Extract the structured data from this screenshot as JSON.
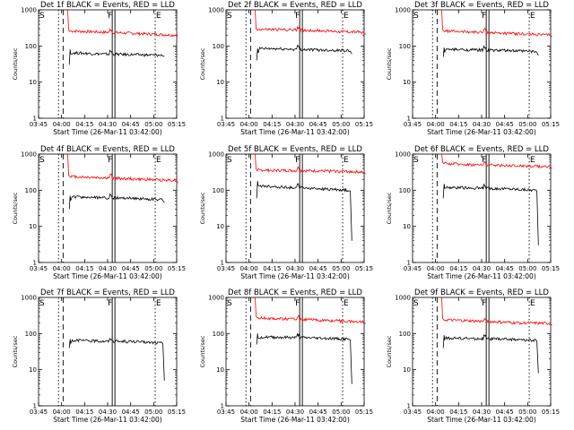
{
  "chart_data": [
    {
      "type": "line",
      "title": "Det 1f BLACK = Events, RED = LLD",
      "xlabel": "Start Time (26-Mar-11 03:42:00)",
      "ylabel": "Counts/sec",
      "yscale": "log",
      "ylim": [
        1,
        1000
      ],
      "xticks": [
        "03:45",
        "04:00",
        "04:15",
        "04:30",
        "04:45",
        "05:00",
        "05:15"
      ],
      "yticks": [
        "1",
        "10",
        "100",
        "1000"
      ],
      "markers": [
        "S",
        "F",
        "E"
      ],
      "series": [
        {
          "name": "LLD",
          "color": "#ff0000",
          "start": [
            1000,
            280
          ],
          "level": [
            260,
            240,
            220,
            200
          ],
          "tail": 190,
          "end": "05:16"
        },
        {
          "name": "Events",
          "color": "#000000",
          "start": [
            30,
            80
          ],
          "level": [
            65,
            60,
            58,
            55
          ],
          "tail": 52,
          "end": "05:07"
        }
      ]
    },
    {
      "type": "line",
      "title": "Det 2f BLACK = Events, RED = LLD",
      "xlabel": "Start Time (26-Mar-11 03:42:00)",
      "ylabel": "Counts/sec",
      "yscale": "log",
      "ylim": [
        1,
        1000
      ],
      "xticks": [
        "03:45",
        "04:00",
        "04:15",
        "04:30",
        "04:45",
        "05:00",
        "05:15"
      ],
      "yticks": [
        "1",
        "10",
        "100",
        "1000"
      ],
      "markers": [
        "S",
        "F",
        "E"
      ],
      "series": [
        {
          "name": "LLD",
          "color": "#ff0000",
          "start": [
            1000,
            300
          ],
          "level": [
            290,
            280,
            260,
            240
          ],
          "tail": 210,
          "end": "05:16"
        },
        {
          "name": "Events",
          "color": "#000000",
          "start": [
            40,
            85
          ],
          "level": [
            85,
            82,
            78,
            75
          ],
          "tail": 60,
          "end": "05:07"
        }
      ]
    },
    {
      "type": "line",
      "title": "Det 3f BLACK = Events, RED = LLD",
      "xlabel": "Start Time (26-Mar-11 03:42:00)",
      "ylabel": "Counts/sec",
      "yscale": "log",
      "ylim": [
        1,
        1000
      ],
      "xticks": [
        "03:45",
        "04:00",
        "04:15",
        "04:30",
        "04:45",
        "05:00",
        "05:15"
      ],
      "yticks": [
        "1",
        "10",
        "100",
        "1000"
      ],
      "markers": [
        "S",
        "F",
        "E"
      ],
      "series": [
        {
          "name": "LLD",
          "color": "#ff0000",
          "start": [
            1000,
            280
          ],
          "level": [
            260,
            240,
            220,
            200
          ],
          "tail": 180,
          "end": "05:16"
        },
        {
          "name": "Events",
          "color": "#000000",
          "start": [
            50,
            90
          ],
          "level": [
            80,
            78,
            75,
            70
          ],
          "tail": 55,
          "end": "05:07"
        }
      ]
    },
    {
      "type": "line",
      "title": "Det 4f BLACK = Events, RED = LLD",
      "xlabel": "Start Time (26-Mar-11 03:42:00)",
      "ylabel": "Counts/sec",
      "yscale": "log",
      "ylim": [
        1,
        1000
      ],
      "xticks": [
        "03:45",
        "04:00",
        "04:15",
        "04:30",
        "04:45",
        "05:00",
        "05:15"
      ],
      "yticks": [
        "1",
        "10",
        "100",
        "1000"
      ],
      "markers": [
        "S",
        "F",
        "E"
      ],
      "series": [
        {
          "name": "LLD",
          "color": "#ff0000",
          "start": [
            1000,
            260
          ],
          "level": [
            240,
            220,
            200,
            190
          ],
          "tail": 160,
          "end": "05:16"
        },
        {
          "name": "Events",
          "color": "#000000",
          "start": [
            30,
            70
          ],
          "level": [
            65,
            62,
            60,
            55
          ],
          "tail": 45,
          "end": "05:07"
        }
      ]
    },
    {
      "type": "line",
      "title": "Det 5f BLACK = Events, RED = LLD",
      "xlabel": "Start Time (26-Mar-11 03:42:00)",
      "ylabel": "Counts/sec",
      "yscale": "log",
      "ylim": [
        1,
        1000
      ],
      "xticks": [
        "03:45",
        "04:00",
        "04:15",
        "04:30",
        "04:45",
        "05:00",
        "05:15"
      ],
      "yticks": [
        "1",
        "10",
        "100",
        "1000"
      ],
      "markers": [
        "S",
        "F",
        "E"
      ],
      "series": [
        {
          "name": "LLD",
          "color": "#ff0000",
          "start": [
            1000,
            380
          ],
          "level": [
            360,
            350,
            340,
            320
          ],
          "tail": 280,
          "end": "05:16"
        },
        {
          "name": "Events",
          "color": "#000000",
          "start": [
            60,
            180
          ],
          "level": [
            130,
            120,
            110,
            100
          ],
          "tail": 4,
          "end": "05:07"
        }
      ]
    },
    {
      "type": "line",
      "title": "Det 6f BLACK = Events, RED = LLD",
      "xlabel": "Start Time (26-Mar-11 03:42:00)",
      "ylabel": "Counts/sec",
      "yscale": "log",
      "ylim": [
        1,
        1000
      ],
      "xticks": [
        "03:45",
        "04:00",
        "04:15",
        "04:30",
        "04:45",
        "05:00",
        "05:15"
      ],
      "yticks": [
        "1",
        "10",
        "100",
        "1000"
      ],
      "markers": [
        "S",
        "F",
        "E"
      ],
      "series": [
        {
          "name": "LLD",
          "color": "#ff0000",
          "start": [
            1000,
            600
          ],
          "level": [
            550,
            500,
            480,
            450
          ],
          "tail": 400,
          "end": "05:16"
        },
        {
          "name": "Events",
          "color": "#000000",
          "start": [
            60,
            150
          ],
          "level": [
            120,
            115,
            110,
            100
          ],
          "tail": 3,
          "end": "05:07"
        }
      ]
    },
    {
      "type": "line",
      "title": "Det 7f BLACK = Events, RED = LLD",
      "xlabel": "Start Time (26-Mar-11 03:42:00)",
      "ylabel": "Counts/sec",
      "yscale": "log",
      "ylim": [
        1,
        1000
      ],
      "xticks": [
        "03:45",
        "04:00",
        "04:15",
        "04:30",
        "04:45",
        "05:00",
        "05:15"
      ],
      "yticks": [
        "1",
        "10",
        "100",
        "1000"
      ],
      "markers": [
        "S",
        "F",
        "E"
      ],
      "series": [
        {
          "name": "Events",
          "color": "#000000",
          "start": [
            40,
            70
          ],
          "level": [
            65,
            62,
            60,
            55
          ],
          "tail": 5,
          "end": "05:07"
        }
      ]
    },
    {
      "type": "line",
      "title": "Det 8f BLACK = Events, RED = LLD",
      "xlabel": "Start Time (26-Mar-11 03:42:00)",
      "ylabel": "Counts/sec",
      "yscale": "log",
      "ylim": [
        1,
        1000
      ],
      "xticks": [
        "03:45",
        "04:00",
        "04:15",
        "04:30",
        "04:45",
        "05:00",
        "05:15"
      ],
      "yticks": [
        "1",
        "10",
        "100",
        "1000"
      ],
      "markers": [
        "S",
        "F",
        "E"
      ],
      "series": [
        {
          "name": "LLD",
          "color": "#ff0000",
          "start": [
            1000,
            300
          ],
          "level": [
            270,
            250,
            230,
            210
          ],
          "tail": 190,
          "end": "05:16"
        },
        {
          "name": "Events",
          "color": "#000000",
          "start": [
            50,
            100
          ],
          "level": [
            80,
            78,
            75,
            70
          ],
          "tail": 4,
          "end": "05:07"
        }
      ]
    },
    {
      "type": "line",
      "title": "Det 9f BLACK = Events, RED = LLD",
      "xlabel": "Start Time (26-Mar-11 03:42:00)",
      "ylabel": "Counts/sec",
      "yscale": "log",
      "ylim": [
        1,
        1000
      ],
      "xticks": [
        "03:45",
        "04:00",
        "04:15",
        "04:30",
        "04:45",
        "05:00",
        "05:15"
      ],
      "yticks": [
        "1",
        "10",
        "100",
        "1000"
      ],
      "markers": [
        "S",
        "F",
        "E"
      ],
      "series": [
        {
          "name": "LLD",
          "color": "#ff0000",
          "start": [
            1000,
            260
          ],
          "level": [
            240,
            220,
            200,
            190
          ],
          "tail": 170,
          "end": "05:16"
        },
        {
          "name": "Events",
          "color": "#000000",
          "start": [
            40,
            90
          ],
          "level": [
            75,
            72,
            70,
            65
          ],
          "tail": 8,
          "end": "05:07"
        }
      ]
    }
  ]
}
